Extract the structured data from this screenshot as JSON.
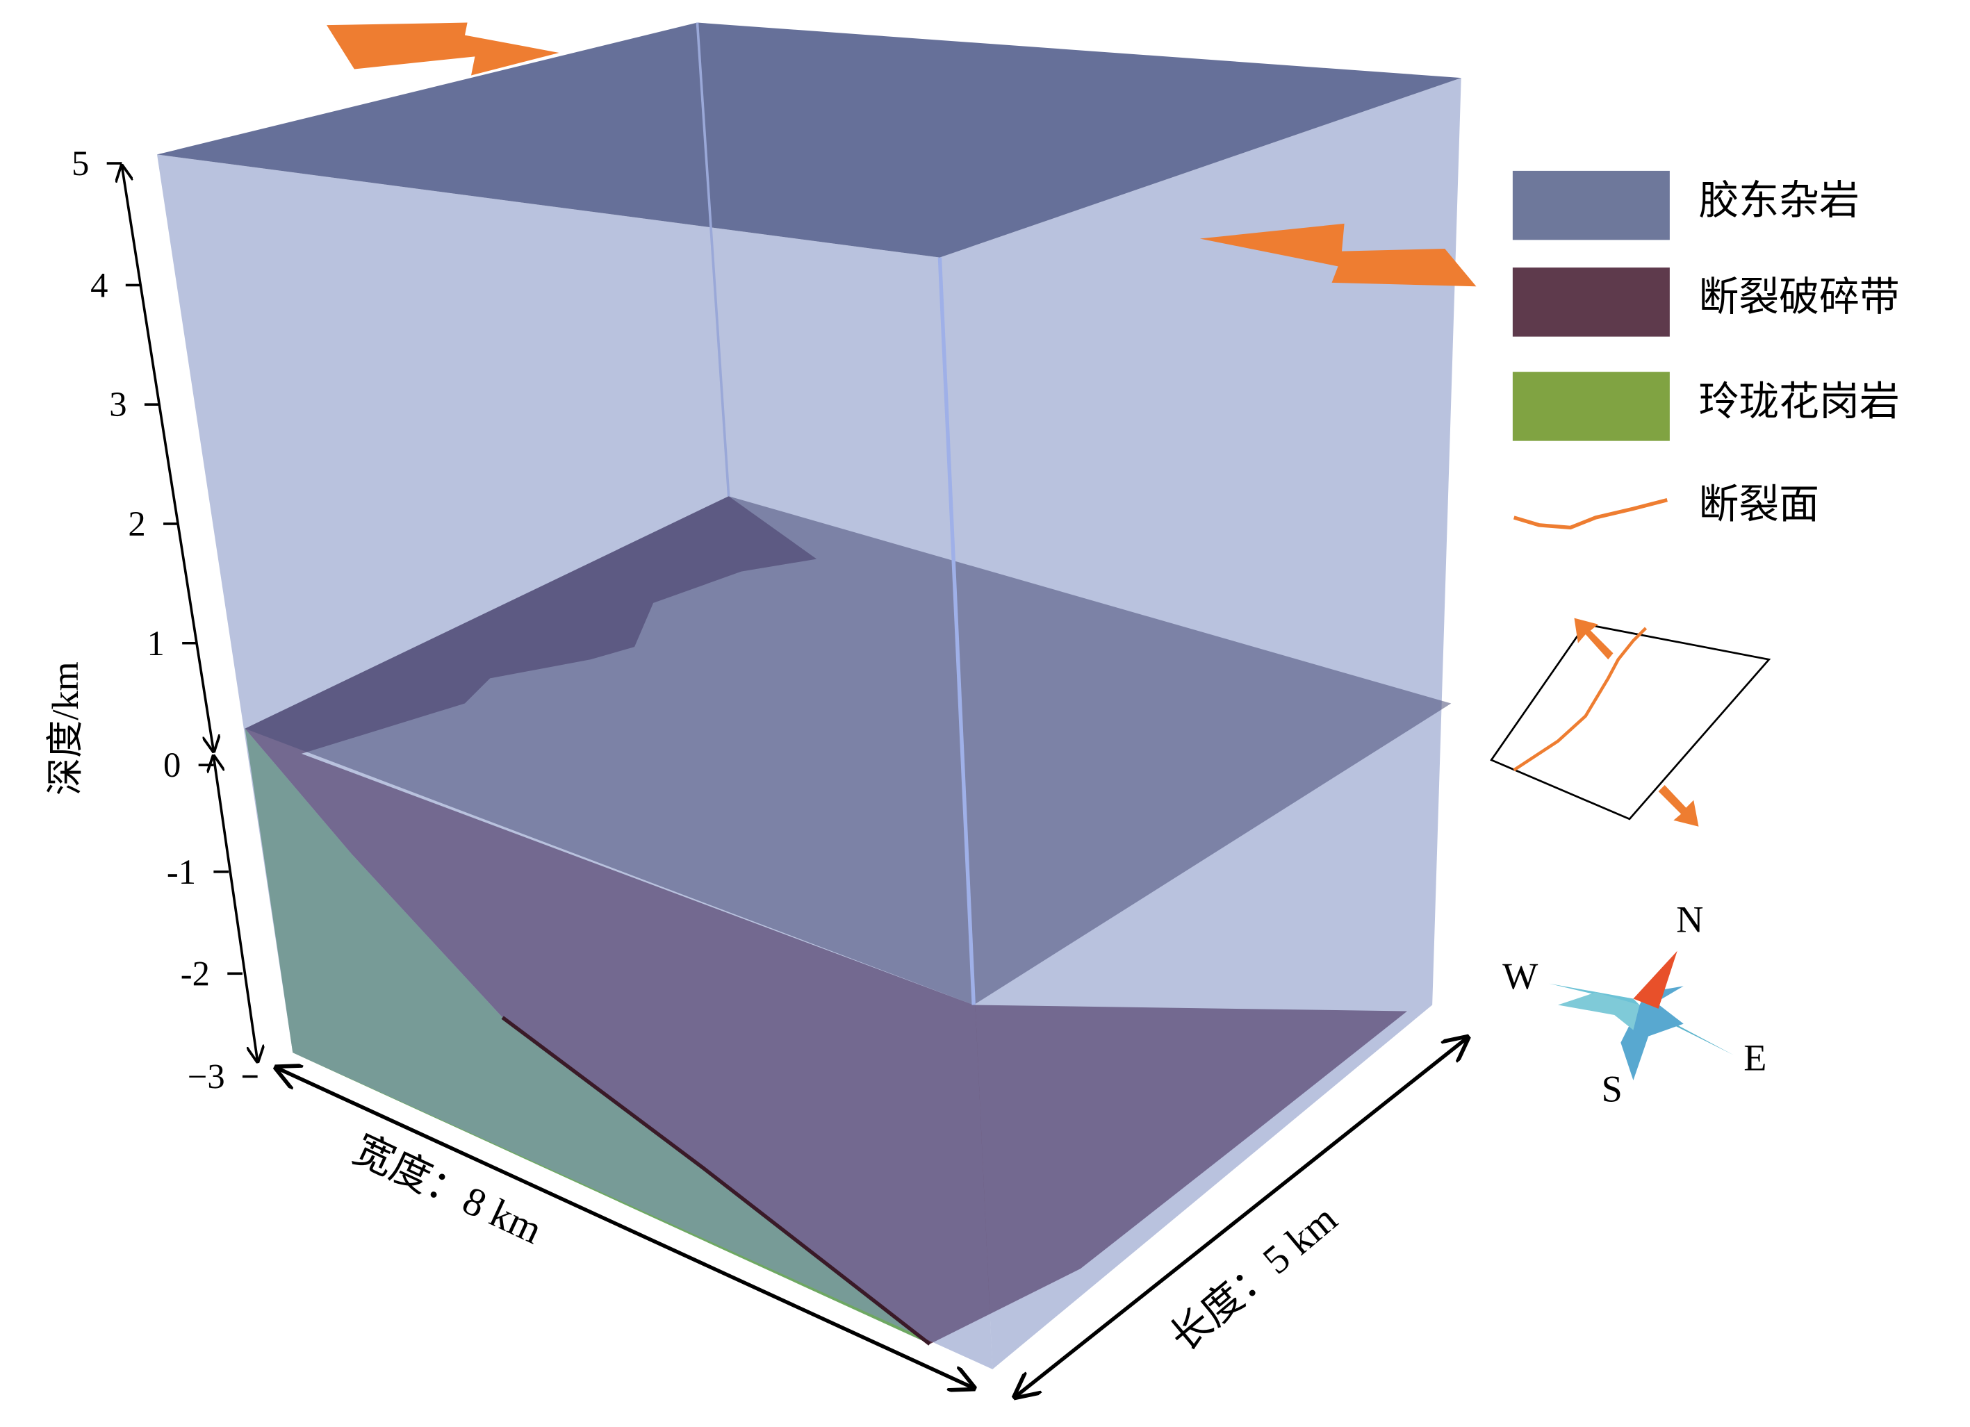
{
  "depth_axis": {
    "label": "深度/km",
    "ticks": [
      "5",
      "4",
      "3",
      "2",
      "1",
      "0",
      "-1",
      "-2",
      "−3"
    ]
  },
  "dimensions": {
    "width": "宽度：8 km",
    "length": "长度：5 km"
  },
  "legend": {
    "items": [
      {
        "label": "胶东杂岩",
        "color": "#6e789b"
      },
      {
        "label": "断裂破碎带",
        "color": "#5e3a4c"
      },
      {
        "label": "玲珑花岗岩",
        "color": "#80a342"
      },
      {
        "label": "断裂面",
        "color": "#ee7d31"
      }
    ]
  },
  "compass": {
    "north": "N",
    "west": "W",
    "east": "E",
    "south": "S"
  }
}
